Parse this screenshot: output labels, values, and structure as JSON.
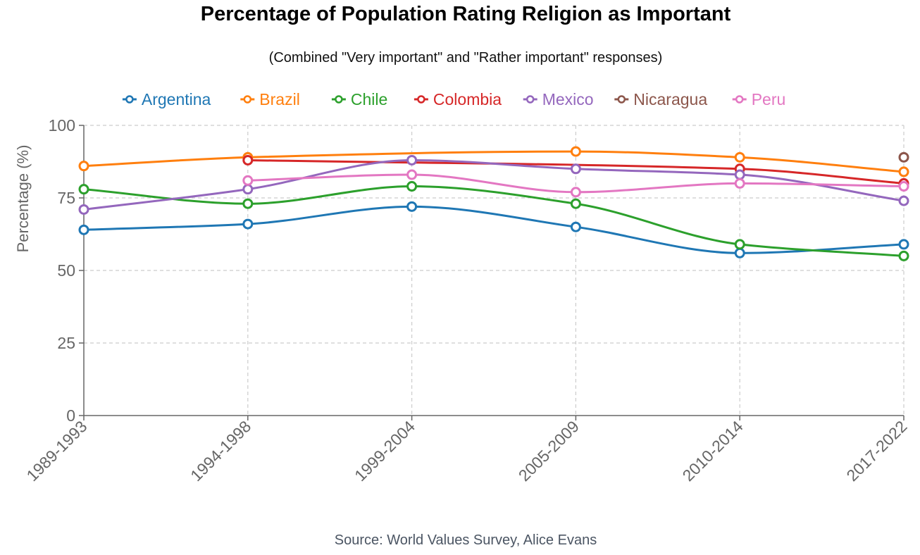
{
  "chart_data": {
    "type": "line",
    "title": "Percentage of Population Rating Religion as Important",
    "subtitle": "(Combined \"Very important\" and \"Rather important\" responses)",
    "source": "Source: World Values Survey, Alice Evans",
    "ylabel": "Percentage (%)",
    "xlabel": "",
    "categories": [
      "1989-1993",
      "1994-1998",
      "1999-2004",
      "2005-2009",
      "2010-2014",
      "2017-2022"
    ],
    "ylim": [
      0,
      100
    ],
    "yticks": [
      0,
      25,
      50,
      75,
      100
    ],
    "grid": true,
    "legend_position": "top-center",
    "series": [
      {
        "name": "Argentina",
        "color": "#1f77b4",
        "values": [
          64,
          66,
          72,
          65,
          56,
          59
        ]
      },
      {
        "name": "Brazil",
        "color": "#ff7f0e",
        "values": [
          86,
          89,
          null,
          91,
          89,
          84
        ]
      },
      {
        "name": "Chile",
        "color": "#2ca02c",
        "values": [
          78,
          73,
          79,
          73,
          59,
          55
        ]
      },
      {
        "name": "Colombia",
        "color": "#d62728",
        "values": [
          null,
          88,
          null,
          null,
          85,
          80
        ]
      },
      {
        "name": "Mexico",
        "color": "#9467bd",
        "values": [
          71,
          78,
          88,
          85,
          83,
          74
        ]
      },
      {
        "name": "Nicaragua",
        "color": "#8c564b",
        "values": [
          null,
          null,
          null,
          null,
          null,
          89
        ]
      },
      {
        "name": "Peru",
        "color": "#e377c2",
        "values": [
          null,
          81,
          83,
          77,
          80,
          79
        ]
      }
    ]
  }
}
